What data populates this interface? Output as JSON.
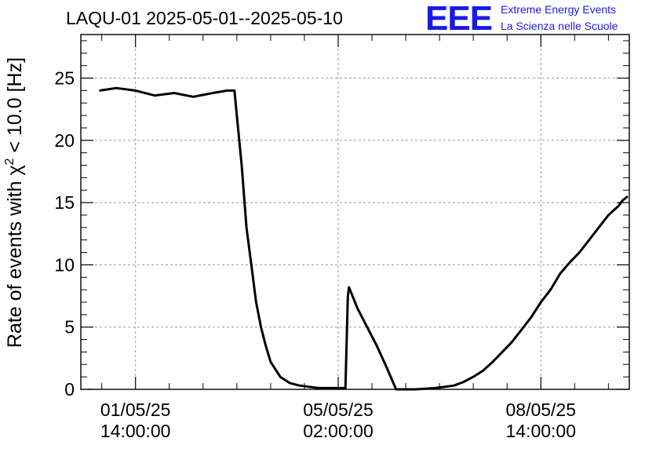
{
  "header": {
    "title": "LAQU-01 2025-05-01--2025-05-10",
    "logo": "EEE",
    "brand_line1": "Extreme Energy Events",
    "brand_line2": "La Scienza nelle Scuole"
  },
  "chart_data": {
    "type": "line",
    "title": "LAQU-01 2025-05-01--2025-05-10",
    "ylabel": "Rate of events with χ² < 10.0 [Hz]",
    "ylabel_parts": [
      "Rate of events with ",
      "χ",
      "2",
      " < 10.0 [Hz]"
    ],
    "xlabel": "",
    "ylim": [
      0,
      28.5
    ],
    "xlim": [
      "2025-04-30 15:20",
      "2025-05-10 02:40"
    ],
    "yticks": [
      0,
      5,
      10,
      15,
      20,
      25
    ],
    "xticks": [
      {
        "t": "2025-05-01 14:00",
        "line1": "01/05/25",
        "line2": "14:00:00"
      },
      {
        "t": "2025-05-05 02:00",
        "line1": "05/05/25",
        "line2": "02:00:00"
      },
      {
        "t": "2025-05-08 14:00",
        "line1": "08/05/25",
        "line2": "14:00:00"
      }
    ],
    "grid": true,
    "line_color": "#000000",
    "series": [
      {
        "x": [
          "2025-04-30 23:00",
          "2025-05-01 06:00",
          "2025-05-01 14:00",
          "2025-05-01 22:00",
          "2025-05-02 06:00",
          "2025-05-02 14:00",
          "2025-05-02 22:00",
          "2025-05-03 04:00",
          "2025-05-03 07:00",
          "2025-05-03 08:00",
          "2025-05-03 10:00",
          "2025-05-03 12:00",
          "2025-05-03 14:00",
          "2025-05-03 16:00",
          "2025-05-03 18:00",
          "2025-05-03 20:00",
          "2025-05-03 22:00",
          "2025-05-04 02:00",
          "2025-05-04 06:00",
          "2025-05-04 10:00",
          "2025-05-04 14:00",
          "2025-05-04 18:00",
          "2025-05-04 22:00",
          "2025-05-05 02:00",
          "2025-05-05 05:00",
          "2025-05-05 06:00",
          "2025-05-05 06:30",
          "2025-05-05 10:00",
          "2025-05-05 14:00",
          "2025-05-05 18:00",
          "2025-05-05 22:00",
          "2025-05-06 02:00",
          "2025-05-06 04:00",
          "2025-05-06 06:00",
          "2025-05-06 10:00",
          "2025-05-06 14:00",
          "2025-05-06 18:00",
          "2025-05-06 22:00",
          "2025-05-07 02:00",
          "2025-05-07 06:00",
          "2025-05-07 10:00",
          "2025-05-07 14:00",
          "2025-05-07 18:00",
          "2025-05-07 22:00",
          "2025-05-08 02:00",
          "2025-05-08 06:00",
          "2025-05-08 10:00",
          "2025-05-08 14:00",
          "2025-05-08 18:00",
          "2025-05-08 22:00",
          "2025-05-09 02:00",
          "2025-05-09 06:00",
          "2025-05-09 10:00",
          "2025-05-09 14:00",
          "2025-05-09 18:00",
          "2025-05-09 22:00",
          "2025-05-10 00:00",
          "2025-05-10 02:00"
        ],
        "y": [
          24.0,
          24.2,
          24.0,
          23.6,
          23.8,
          23.5,
          23.8,
          24.0,
          24.0,
          22.0,
          18.0,
          13.0,
          10.0,
          7.0,
          5.0,
          3.5,
          2.2,
          1.0,
          0.5,
          0.3,
          0.2,
          0.1,
          0.1,
          0.1,
          0.1,
          7.5,
          8.2,
          6.5,
          5.0,
          3.5,
          1.8,
          0.0,
          0.0,
          0.0,
          0.0,
          0.05,
          0.1,
          0.2,
          0.3,
          0.6,
          1.0,
          1.5,
          2.2,
          3.0,
          3.8,
          4.8,
          5.8,
          7.0,
          8.0,
          9.3,
          10.2,
          11.0,
          12.0,
          13.0,
          14.0,
          14.7,
          15.2,
          15.5
        ]
      }
    ]
  }
}
